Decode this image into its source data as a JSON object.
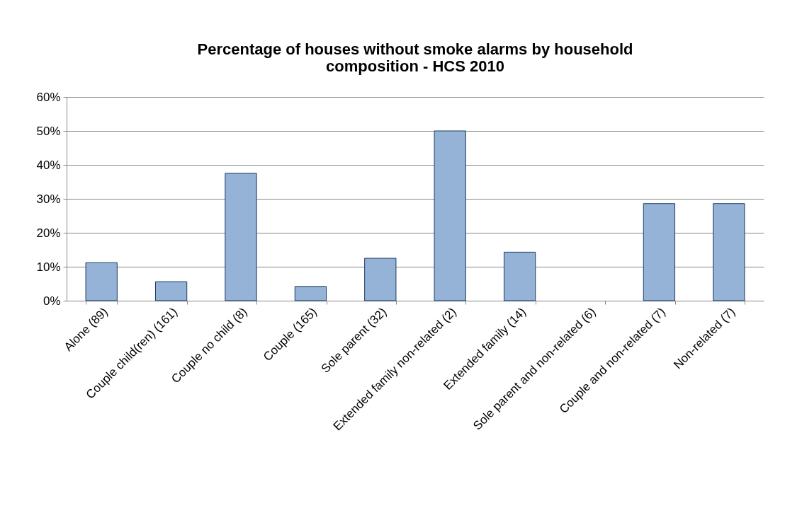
{
  "chart_data": {
    "type": "bar",
    "title": "Percentage of houses without smoke alarms by household\ncomposition - HCS 2010",
    "categories": [
      "Alone (89)",
      "Couple child(ren) (161)",
      "Couple no child (8)",
      "Couple (165)",
      "Sole parent (32)",
      "Extended family non-related (2)",
      "Extended family (14)",
      "Sole parent and non-related (6)",
      "Couple and non-related (7)",
      "Non-related (7)"
    ],
    "values": [
      11.2,
      5.6,
      37.5,
      4.2,
      12.5,
      50,
      14.3,
      0,
      28.6,
      28.6
    ],
    "color": "#95b3d7",
    "ylim": [
      0,
      60
    ],
    "yticks": [
      {
        "value": 0,
        "label": "0%"
      },
      {
        "value": 10,
        "label": "10%"
      },
      {
        "value": 20,
        "label": "20%"
      },
      {
        "value": 30,
        "label": "30%"
      },
      {
        "value": 40,
        "label": "40%"
      },
      {
        "value": 50,
        "label": "50%"
      },
      {
        "value": 60,
        "label": "60%"
      }
    ],
    "grid": "y"
  }
}
